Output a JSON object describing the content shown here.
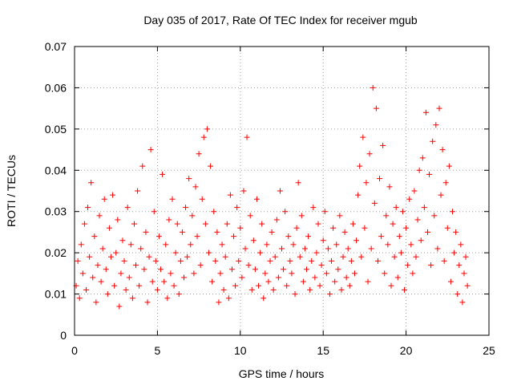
{
  "chart_data": {
    "type": "scatter",
    "title": "Day 035 of 2017, Rate Of TEC Index for receiver mgub",
    "xlabel": "GPS time / hours",
    "ylabel": "ROTI / TECUs",
    "xlim": [
      0,
      25
    ],
    "ylim": [
      0,
      0.07
    ],
    "x_ticks": [
      "0",
      "5",
      "10",
      "15",
      "20",
      "25"
    ],
    "y_ticks": [
      "0",
      "0.01",
      "0.02",
      "0.03",
      "0.04",
      "0.05",
      "0.06",
      "0.07"
    ],
    "grid": true,
    "legend": "none",
    "marker": "plus",
    "color": "#ff0000",
    "series": [
      {
        "points": [
          [
            0.1,
            0.012
          ],
          [
            0.2,
            0.018
          ],
          [
            0.3,
            0.009
          ],
          [
            0.4,
            0.022
          ],
          [
            0.5,
            0.015
          ],
          [
            0.6,
            0.027
          ],
          [
            0.7,
            0.011
          ],
          [
            0.8,
            0.031
          ],
          [
            0.9,
            0.019
          ],
          [
            1.0,
            0.037
          ],
          [
            1.1,
            0.014
          ],
          [
            1.2,
            0.024
          ],
          [
            1.3,
            0.008
          ],
          [
            1.4,
            0.017
          ],
          [
            1.5,
            0.029
          ],
          [
            1.6,
            0.013
          ],
          [
            1.7,
            0.021
          ],
          [
            1.8,
            0.033
          ],
          [
            1.9,
            0.016
          ],
          [
            2.0,
            0.01
          ],
          [
            2.1,
            0.026
          ],
          [
            2.2,
            0.019
          ],
          [
            2.3,
            0.034
          ],
          [
            2.4,
            0.012
          ],
          [
            2.5,
            0.02
          ],
          [
            2.6,
            0.028
          ],
          [
            2.7,
            0.007
          ],
          [
            2.8,
            0.015
          ],
          [
            2.9,
            0.023
          ],
          [
            3.0,
            0.018
          ],
          [
            3.1,
            0.011
          ],
          [
            3.2,
            0.031
          ],
          [
            3.3,
            0.014
          ],
          [
            3.4,
            0.022
          ],
          [
            3.5,
            0.009
          ],
          [
            3.6,
            0.027
          ],
          [
            3.7,
            0.017
          ],
          [
            3.8,
            0.035
          ],
          [
            3.9,
            0.012
          ],
          [
            4.0,
            0.021
          ],
          [
            4.1,
            0.041
          ],
          [
            4.2,
            0.016
          ],
          [
            4.3,
            0.025
          ],
          [
            4.4,
            0.008
          ],
          [
            4.5,
            0.019
          ],
          [
            4.6,
            0.045
          ],
          [
            4.7,
            0.013
          ],
          [
            4.8,
            0.03
          ],
          [
            4.9,
            0.018
          ],
          [
            5.0,
            0.011
          ],
          [
            5.1,
            0.024
          ],
          [
            5.2,
            0.016
          ],
          [
            5.3,
            0.039
          ],
          [
            5.4,
            0.013
          ],
          [
            5.5,
            0.022
          ],
          [
            5.6,
            0.009
          ],
          [
            5.7,
            0.028
          ],
          [
            5.8,
            0.015
          ],
          [
            5.9,
            0.033
          ],
          [
            6.0,
            0.012
          ],
          [
            6.1,
            0.02
          ],
          [
            6.2,
            0.027
          ],
          [
            6.3,
            0.01
          ],
          [
            6.4,
            0.018
          ],
          [
            6.5,
            0.025
          ],
          [
            6.6,
            0.014
          ],
          [
            6.7,
            0.031
          ],
          [
            6.8,
            0.019
          ],
          [
            6.9,
            0.038
          ],
          [
            7.0,
            0.022
          ],
          [
            7.1,
            0.029
          ],
          [
            7.2,
            0.015
          ],
          [
            7.3,
            0.036
          ],
          [
            7.4,
            0.024
          ],
          [
            7.5,
            0.044
          ],
          [
            7.6,
            0.017
          ],
          [
            7.7,
            0.033
          ],
          [
            7.8,
            0.048
          ],
          [
            7.9,
            0.027
          ],
          [
            8.0,
            0.05
          ],
          [
            8.1,
            0.02
          ],
          [
            8.2,
            0.041
          ],
          [
            8.3,
            0.013
          ],
          [
            8.4,
            0.03
          ],
          [
            8.5,
            0.018
          ],
          [
            8.6,
            0.025
          ],
          [
            8.7,
            0.008
          ],
          [
            8.8,
            0.015
          ],
          [
            8.9,
            0.022
          ],
          [
            9.0,
            0.011
          ],
          [
            9.1,
            0.019
          ],
          [
            9.2,
            0.027
          ],
          [
            9.3,
            0.009
          ],
          [
            9.4,
            0.034
          ],
          [
            9.5,
            0.016
          ],
          [
            9.6,
            0.024
          ],
          [
            9.7,
            0.012
          ],
          [
            9.8,
            0.031
          ],
          [
            9.9,
            0.018
          ],
          [
            10.0,
            0.026
          ],
          [
            10.1,
            0.014
          ],
          [
            10.2,
            0.035
          ],
          [
            10.3,
            0.021
          ],
          [
            10.4,
            0.048
          ],
          [
            10.5,
            0.017
          ],
          [
            10.6,
            0.029
          ],
          [
            10.7,
            0.011
          ],
          [
            10.8,
            0.023
          ],
          [
            10.9,
            0.016
          ],
          [
            11.0,
            0.033
          ],
          [
            11.1,
            0.012
          ],
          [
            11.2,
            0.02
          ],
          [
            11.3,
            0.027
          ],
          [
            11.4,
            0.009
          ],
          [
            11.5,
            0.015
          ],
          [
            11.6,
            0.022
          ],
          [
            11.7,
            0.013
          ],
          [
            11.8,
            0.018
          ],
          [
            11.9,
            0.025
          ],
          [
            12.0,
            0.011
          ],
          [
            12.1,
            0.019
          ],
          [
            12.2,
            0.028
          ],
          [
            12.3,
            0.014
          ],
          [
            12.4,
            0.035
          ],
          [
            12.5,
            0.021
          ],
          [
            12.6,
            0.016
          ],
          [
            12.7,
            0.03
          ],
          [
            12.8,
            0.012
          ],
          [
            12.9,
            0.024
          ],
          [
            13.0,
            0.018
          ],
          [
            13.1,
            0.015
          ],
          [
            13.2,
            0.022
          ],
          [
            13.3,
            0.01
          ],
          [
            13.4,
            0.026
          ],
          [
            13.5,
            0.037
          ],
          [
            13.6,
            0.019
          ],
          [
            13.7,
            0.029
          ],
          [
            13.8,
            0.013
          ],
          [
            13.9,
            0.021
          ],
          [
            14.0,
            0.016
          ],
          [
            14.1,
            0.024
          ],
          [
            14.2,
            0.011
          ],
          [
            14.3,
            0.018
          ],
          [
            14.4,
            0.031
          ],
          [
            14.5,
            0.014
          ],
          [
            14.6,
            0.02
          ],
          [
            14.7,
            0.027
          ],
          [
            14.8,
            0.012
          ],
          [
            14.9,
            0.017
          ],
          [
            15.0,
            0.023
          ],
          [
            15.1,
            0.03
          ],
          [
            15.2,
            0.015
          ],
          [
            15.3,
            0.021
          ],
          [
            15.4,
            0.01
          ],
          [
            15.5,
            0.018
          ],
          [
            15.6,
            0.026
          ],
          [
            15.7,
            0.013
          ],
          [
            15.8,
            0.022
          ],
          [
            15.9,
            0.016
          ],
          [
            16.0,
            0.029
          ],
          [
            16.1,
            0.011
          ],
          [
            16.2,
            0.019
          ],
          [
            16.3,
            0.025
          ],
          [
            16.4,
            0.014
          ],
          [
            16.5,
            0.021
          ],
          [
            16.6,
            0.012
          ],
          [
            16.7,
            0.018
          ],
          [
            16.8,
            0.027
          ],
          [
            16.9,
            0.015
          ],
          [
            17.0,
            0.023
          ],
          [
            17.1,
            0.034
          ],
          [
            17.2,
            0.041
          ],
          [
            17.3,
            0.019
          ],
          [
            17.4,
            0.048
          ],
          [
            17.5,
            0.026
          ],
          [
            17.6,
            0.037
          ],
          [
            17.7,
            0.013
          ],
          [
            17.8,
            0.044
          ],
          [
            17.9,
            0.021
          ],
          [
            18.0,
            0.06
          ],
          [
            18.1,
            0.032
          ],
          [
            18.2,
            0.055
          ],
          [
            18.3,
            0.018
          ],
          [
            18.4,
            0.038
          ],
          [
            18.5,
            0.024
          ],
          [
            18.6,
            0.046
          ],
          [
            18.7,
            0.015
          ],
          [
            18.8,
            0.029
          ],
          [
            18.9,
            0.022
          ],
          [
            19.0,
            0.036
          ],
          [
            19.1,
            0.012
          ],
          [
            19.2,
            0.027
          ],
          [
            19.3,
            0.019
          ],
          [
            19.4,
            0.031
          ],
          [
            19.5,
            0.014
          ],
          [
            19.6,
            0.024
          ],
          [
            19.7,
            0.02
          ],
          [
            19.8,
            0.03
          ],
          [
            19.9,
            0.011
          ],
          [
            20.0,
            0.026
          ],
          [
            20.1,
            0.017
          ],
          [
            20.2,
            0.033
          ],
          [
            20.3,
            0.022
          ],
          [
            20.4,
            0.015
          ],
          [
            20.5,
            0.035
          ],
          [
            20.6,
            0.019
          ],
          [
            20.7,
            0.028
          ],
          [
            20.8,
            0.04
          ],
          [
            20.9,
            0.023
          ],
          [
            21.0,
            0.043
          ],
          [
            21.1,
            0.031
          ],
          [
            21.2,
            0.054
          ],
          [
            21.3,
            0.025
          ],
          [
            21.4,
            0.039
          ],
          [
            21.5,
            0.017
          ],
          [
            21.6,
            0.047
          ],
          [
            21.7,
            0.029
          ],
          [
            21.8,
            0.051
          ],
          [
            21.9,
            0.021
          ],
          [
            22.0,
            0.055
          ],
          [
            22.1,
            0.034
          ],
          [
            22.2,
            0.045
          ],
          [
            22.3,
            0.018
          ],
          [
            22.4,
            0.037
          ],
          [
            22.5,
            0.026
          ],
          [
            22.6,
            0.041
          ],
          [
            22.7,
            0.013
          ],
          [
            22.8,
            0.03
          ],
          [
            22.9,
            0.02
          ],
          [
            23.0,
            0.025
          ],
          [
            23.1,
            0.01
          ],
          [
            23.2,
            0.017
          ],
          [
            23.3,
            0.022
          ],
          [
            23.4,
            0.008
          ],
          [
            23.5,
            0.015
          ],
          [
            23.6,
            0.019
          ],
          [
            23.7,
            0.012
          ]
        ]
      }
    ]
  }
}
